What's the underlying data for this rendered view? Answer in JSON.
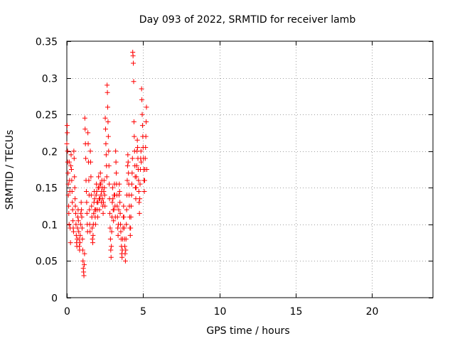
{
  "chart_data": {
    "type": "scatter",
    "title": "Day 093 of 2022, SRMTID for receiver lamb",
    "xlabel": "GPS time / hours",
    "ylabel": "SRMTID / TECUs",
    "xlim": [
      0,
      24
    ],
    "ylim": [
      0,
      0.35
    ],
    "xticks": [
      0,
      5,
      10,
      15,
      20
    ],
    "xtick_labels": [
      "0",
      "5",
      "10",
      "15",
      "20"
    ],
    "yticks": [
      0,
      0.05,
      0.1,
      0.15,
      0.2,
      0.25,
      0.3,
      0.35
    ],
    "ytick_labels": [
      "0",
      "0.05",
      "0.1",
      "0.15",
      "0.2",
      "0.25",
      "0.3",
      "0.35"
    ],
    "grid": true,
    "marker": "+",
    "color": "#ff0000",
    "series": [
      {
        "name": "SRMTID",
        "points": [
          [
            0.0,
            0.21
          ],
          [
            0.02,
            0.235
          ],
          [
            0.03,
            0.225
          ],
          [
            0.05,
            0.2
          ],
          [
            0.06,
            0.185
          ],
          [
            0.08,
            0.17
          ],
          [
            0.1,
            0.155
          ],
          [
            0.1,
            0.14
          ],
          [
            0.12,
            0.125
          ],
          [
            0.13,
            0.115
          ],
          [
            0.15,
            0.1
          ],
          [
            0.16,
            0.185
          ],
          [
            0.18,
            0.16
          ],
          [
            0.2,
            0.145
          ],
          [
            0.22,
            0.095
          ],
          [
            0.24,
            0.075
          ],
          [
            0.26,
            0.18
          ],
          [
            0.28,
            0.195
          ],
          [
            0.3,
            0.175
          ],
          [
            0.32,
            0.16
          ],
          [
            0.34,
            0.145
          ],
          [
            0.36,
            0.13
          ],
          [
            0.38,
            0.12
          ],
          [
            0.4,
            0.105
          ],
          [
            0.42,
            0.095
          ],
          [
            0.44,
            0.09
          ],
          [
            0.46,
            0.2
          ],
          [
            0.48,
            0.19
          ],
          [
            0.5,
            0.165
          ],
          [
            0.52,
            0.15
          ],
          [
            0.54,
            0.135
          ],
          [
            0.56,
            0.125
          ],
          [
            0.58,
            0.115
          ],
          [
            0.6,
            0.1
          ],
          [
            0.62,
            0.085
          ],
          [
            0.64,
            0.075
          ],
          [
            0.66,
            0.07
          ],
          [
            0.68,
            0.08
          ],
          [
            0.7,
            0.095
          ],
          [
            0.72,
            0.11
          ],
          [
            0.74,
            0.12
          ],
          [
            0.76,
            0.105
          ],
          [
            0.78,
            0.09
          ],
          [
            0.8,
            0.08
          ],
          [
            0.82,
            0.07
          ],
          [
            0.84,
            0.065
          ],
          [
            0.86,
            0.075
          ],
          [
            0.88,
            0.085
          ],
          [
            0.9,
            0.1
          ],
          [
            0.92,
            0.115
          ],
          [
            0.94,
            0.13
          ],
          [
            0.96,
            0.12
          ],
          [
            0.98,
            0.11
          ],
          [
            1.0,
            0.095
          ],
          [
            1.02,
            0.08
          ],
          [
            1.04,
            0.065
          ],
          [
            1.06,
            0.05
          ],
          [
            1.08,
            0.04
          ],
          [
            1.1,
            0.035
          ],
          [
            1.12,
            0.03
          ],
          [
            1.14,
            0.045
          ],
          [
            1.16,
            0.06
          ],
          [
            1.18,
            0.245
          ],
          [
            1.2,
            0.23
          ],
          [
            1.22,
            0.21
          ],
          [
            1.24,
            0.19
          ],
          [
            1.26,
            0.16
          ],
          [
            1.28,
            0.145
          ],
          [
            1.3,
            0.13
          ],
          [
            1.32,
            0.115
          ],
          [
            1.34,
            0.1
          ],
          [
            1.36,
            0.09
          ],
          [
            1.38,
            0.225
          ],
          [
            1.4,
            0.21
          ],
          [
            1.42,
            0.185
          ],
          [
            1.44,
            0.16
          ],
          [
            1.46,
            0.14
          ],
          [
            1.48,
            0.12
          ],
          [
            1.5,
            0.1
          ],
          [
            1.52,
            0.09
          ],
          [
            1.54,
            0.2
          ],
          [
            1.56,
            0.185
          ],
          [
            1.58,
            0.165
          ],
          [
            1.6,
            0.14
          ],
          [
            1.62,
            0.125
          ],
          [
            1.64,
            0.11
          ],
          [
            1.66,
            0.095
          ],
          [
            1.68,
            0.08
          ],
          [
            1.7,
            0.075
          ],
          [
            1.72,
            0.085
          ],
          [
            1.74,
            0.1
          ],
          [
            1.76,
            0.115
          ],
          [
            1.78,
            0.13
          ],
          [
            1.8,
            0.145
          ],
          [
            1.82,
            0.135
          ],
          [
            1.84,
            0.12
          ],
          [
            1.86,
            0.11
          ],
          [
            1.88,
            0.1
          ],
          [
            1.9,
            0.12
          ],
          [
            1.92,
            0.14
          ],
          [
            1.94,
            0.155
          ],
          [
            1.96,
            0.145
          ],
          [
            1.98,
            0.13
          ],
          [
            2.0,
            0.12
          ],
          [
            2.02,
            0.11
          ],
          [
            2.04,
            0.13
          ],
          [
            2.06,
            0.15
          ],
          [
            2.08,
            0.165
          ],
          [
            2.1,
            0.15
          ],
          [
            2.12,
            0.135
          ],
          [
            2.14,
            0.12
          ],
          [
            2.16,
            0.135
          ],
          [
            2.18,
            0.155
          ],
          [
            2.2,
            0.17
          ],
          [
            2.22,
            0.155
          ],
          [
            2.24,
            0.14
          ],
          [
            2.26,
            0.13
          ],
          [
            2.28,
            0.145
          ],
          [
            2.3,
            0.16
          ],
          [
            2.32,
            0.15
          ],
          [
            2.34,
            0.135
          ],
          [
            2.36,
            0.125
          ],
          [
            2.38,
            0.115
          ],
          [
            2.4,
            0.13
          ],
          [
            2.42,
            0.145
          ],
          [
            2.44,
            0.16
          ],
          [
            2.46,
            0.15
          ],
          [
            2.48,
            0.14
          ],
          [
            2.5,
            0.125
          ],
          [
            2.52,
            0.245
          ],
          [
            2.54,
            0.23
          ],
          [
            2.56,
            0.21
          ],
          [
            2.58,
            0.195
          ],
          [
            2.6,
            0.18
          ],
          [
            2.62,
            0.165
          ],
          [
            2.64,
            0.29
          ],
          [
            2.66,
            0.28
          ],
          [
            2.68,
            0.26
          ],
          [
            2.7,
            0.24
          ],
          [
            2.72,
            0.22
          ],
          [
            2.74,
            0.2
          ],
          [
            2.76,
            0.18
          ],
          [
            2.78,
            0.155
          ],
          [
            2.8,
            0.135
          ],
          [
            2.82,
            0.115
          ],
          [
            2.84,
            0.095
          ],
          [
            2.86,
            0.08
          ],
          [
            2.88,
            0.065
          ],
          [
            2.9,
            0.055
          ],
          [
            2.92,
            0.07
          ],
          [
            2.94,
            0.09
          ],
          [
            2.96,
            0.11
          ],
          [
            2.98,
            0.13
          ],
          [
            3.0,
            0.15
          ],
          [
            3.02,
            0.135
          ],
          [
            3.04,
            0.12
          ],
          [
            3.06,
            0.105
          ],
          [
            3.08,
            0.12
          ],
          [
            3.1,
            0.14
          ],
          [
            3.12,
            0.155
          ],
          [
            3.14,
            0.14
          ],
          [
            3.16,
            0.125
          ],
          [
            3.18,
            0.11
          ],
          [
            3.2,
            0.2
          ],
          [
            3.22,
            0.185
          ],
          [
            3.24,
            0.17
          ],
          [
            3.26,
            0.155
          ],
          [
            3.28,
            0.14
          ],
          [
            3.3,
            0.125
          ],
          [
            3.32,
            0.11
          ],
          [
            3.34,
            0.095
          ],
          [
            3.36,
            0.085
          ],
          [
            3.38,
            0.1
          ],
          [
            3.4,
            0.12
          ],
          [
            3.42,
            0.14
          ],
          [
            3.44,
            0.155
          ],
          [
            3.46,
            0.145
          ],
          [
            3.48,
            0.13
          ],
          [
            3.5,
            0.115
          ],
          [
            3.52,
            0.1
          ],
          [
            3.54,
            0.09
          ],
          [
            3.56,
            0.08
          ],
          [
            3.58,
            0.07
          ],
          [
            3.6,
            0.06
          ],
          [
            3.62,
            0.055
          ],
          [
            3.64,
            0.065
          ],
          [
            3.66,
            0.08
          ],
          [
            3.68,
            0.095
          ],
          [
            3.7,
            0.11
          ],
          [
            3.72,
            0.125
          ],
          [
            3.74,
            0.11
          ],
          [
            3.76,
            0.095
          ],
          [
            3.78,
            0.08
          ],
          [
            3.8,
            0.07
          ],
          [
            3.82,
            0.06
          ],
          [
            3.84,
            0.05
          ],
          [
            3.86,
            0.065
          ],
          [
            3.88,
            0.08
          ],
          [
            3.9,
            0.1
          ],
          [
            3.92,
            0.12
          ],
          [
            3.94,
            0.14
          ],
          [
            3.96,
            0.16
          ],
          [
            3.98,
            0.18
          ],
          [
            4.0,
            0.195
          ],
          [
            4.02,
            0.185
          ],
          [
            4.04,
            0.17
          ],
          [
            4.06,
            0.155
          ],
          [
            4.08,
            0.14
          ],
          [
            4.1,
            0.125
          ],
          [
            4.12,
            0.11
          ],
          [
            4.14,
            0.095
          ],
          [
            4.16,
            0.085
          ],
          [
            4.18,
            0.095
          ],
          [
            4.2,
            0.11
          ],
          [
            4.22,
            0.125
          ],
          [
            4.24,
            0.14
          ],
          [
            4.26,
            0.155
          ],
          [
            4.28,
            0.17
          ],
          [
            4.3,
            0.19
          ],
          [
            4.32,
            0.335
          ],
          [
            4.34,
            0.33
          ],
          [
            4.36,
            0.32
          ],
          [
            4.38,
            0.295
          ],
          [
            4.4,
            0.24
          ],
          [
            4.42,
            0.22
          ],
          [
            4.44,
            0.2
          ],
          [
            4.46,
            0.18
          ],
          [
            4.48,
            0.165
          ],
          [
            4.5,
            0.15
          ],
          [
            4.52,
            0.135
          ],
          [
            4.54,
            0.15
          ],
          [
            4.56,
            0.165
          ],
          [
            4.58,
            0.18
          ],
          [
            4.6,
            0.2
          ],
          [
            4.62,
            0.215
          ],
          [
            4.64,
            0.205
          ],
          [
            4.66,
            0.19
          ],
          [
            4.68,
            0.175
          ],
          [
            4.7,
            0.16
          ],
          [
            4.72,
            0.145
          ],
          [
            4.74,
            0.13
          ],
          [
            4.76,
            0.115
          ],
          [
            4.78,
            0.135
          ],
          [
            4.8,
            0.155
          ],
          [
            4.82,
            0.175
          ],
          [
            4.84,
            0.19
          ],
          [
            4.86,
            0.2
          ],
          [
            4.88,
            0.185
          ],
          [
            4.9,
            0.285
          ],
          [
            4.92,
            0.27
          ],
          [
            4.94,
            0.25
          ],
          [
            4.96,
            0.235
          ],
          [
            4.98,
            0.22
          ],
          [
            5.0,
            0.205
          ],
          [
            5.02,
            0.19
          ],
          [
            5.04,
            0.175
          ],
          [
            5.06,
            0.16
          ],
          [
            5.08,
            0.145
          ],
          [
            5.1,
            0.16
          ],
          [
            5.12,
            0.175
          ],
          [
            5.14,
            0.19
          ],
          [
            5.16,
            0.205
          ],
          [
            5.18,
            0.22
          ],
          [
            5.2,
            0.24
          ],
          [
            5.22,
            0.26
          ],
          [
            5.24,
            0.175
          ]
        ]
      }
    ]
  }
}
